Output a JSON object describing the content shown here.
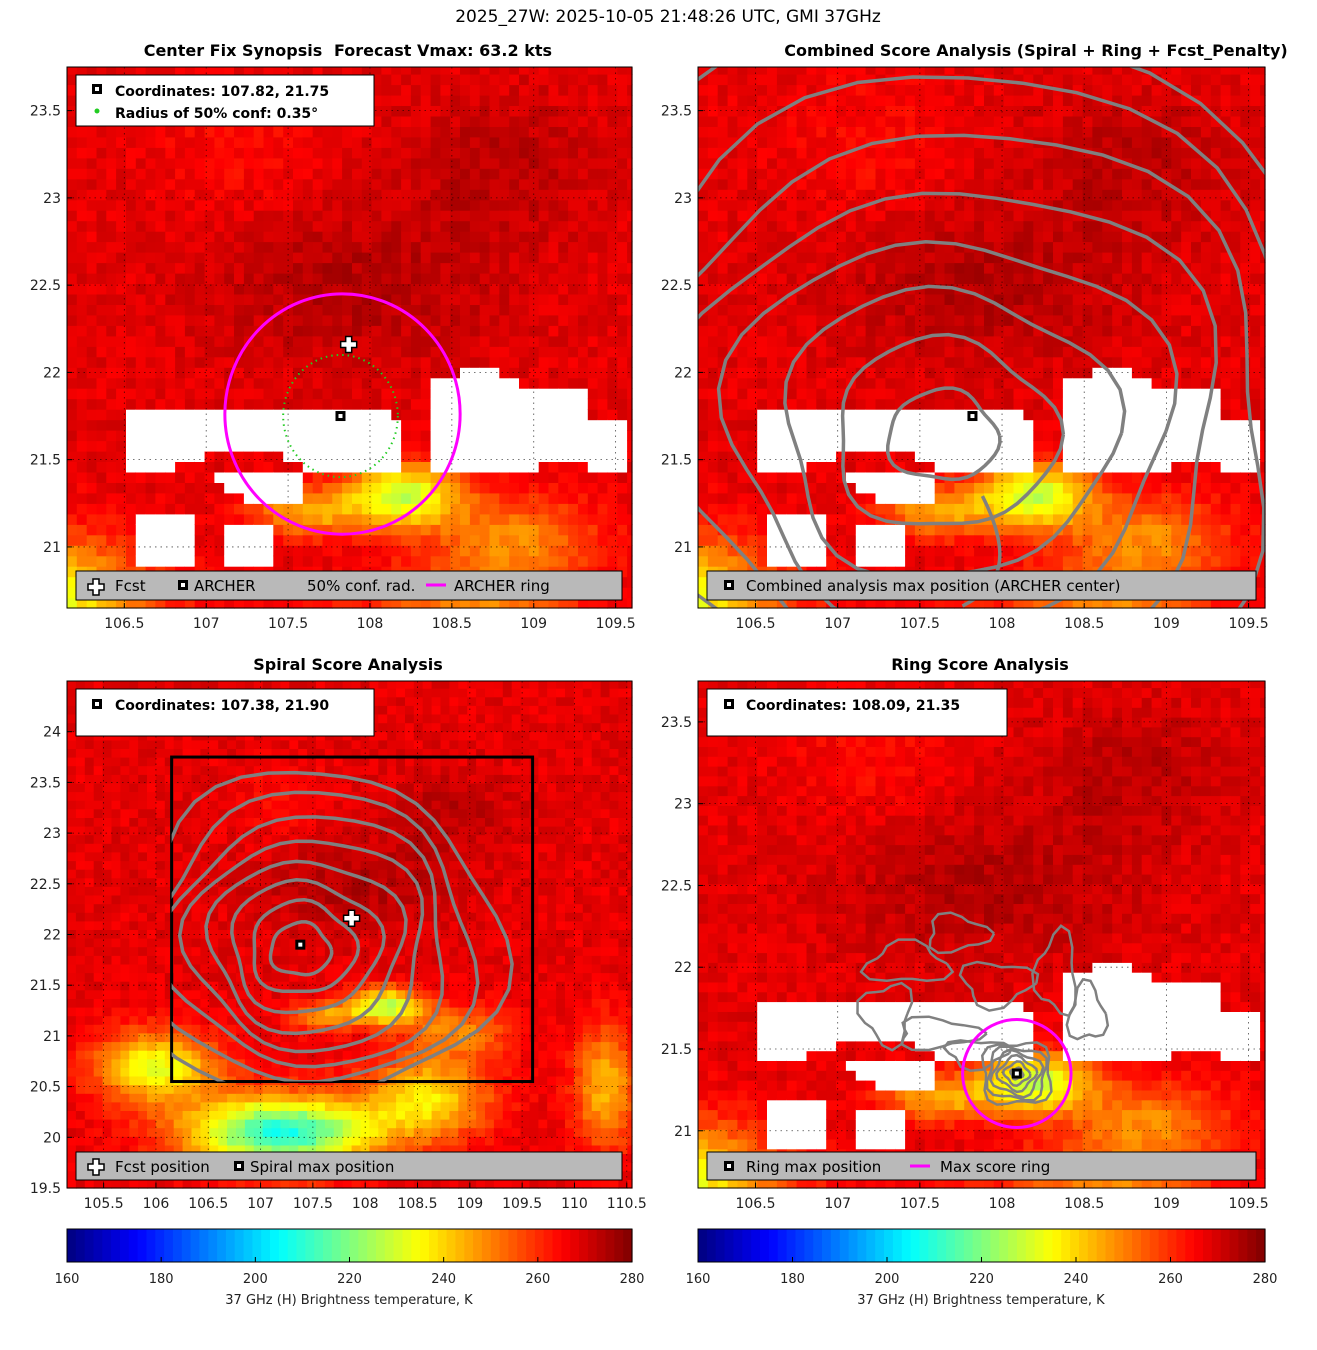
{
  "suptitle": "2025_27W: 2025-10-05 21:48:26 UTC, GMI 37GHz",
  "chart_data": [
    {
      "type": "heatmap",
      "id": "p1",
      "title_left": "Center Fix Synopsis",
      "title_right": "Forecast Vmax: 63.2 kts",
      "xlim": [
        106.15,
        109.6
      ],
      "ylim": [
        20.65,
        23.75
      ],
      "x_ticks": [
        "106.5",
        "107",
        "107.5",
        "108",
        "108.5",
        "109",
        "109.5"
      ],
      "y_ticks": [
        "21",
        "21.5",
        "22",
        "22.5",
        "23",
        "23.5"
      ],
      "info_lines": [
        "Coordinates: 107.82, 21.75",
        "Radius of 50% conf: 0.35°"
      ],
      "legend": [
        "Fcst",
        "ARCHER",
        "50% conf. rad.",
        "ARCHER ring"
      ],
      "fcst_position": [
        107.87,
        22.16
      ],
      "archer_center": [
        107.82,
        21.75
      ],
      "conf_radius_deg": 0.35,
      "archer_ring_radius_deg": 0.7
    },
    {
      "type": "heatmap",
      "id": "p2",
      "title": "Combined Score Analysis (Spiral + Ring + Fcst_Penalty)",
      "xlim": [
        106.15,
        109.6
      ],
      "ylim": [
        20.65,
        23.75
      ],
      "x_ticks": [
        "106.5",
        "107",
        "107.5",
        "108",
        "108.5",
        "109",
        "109.5"
      ],
      "y_ticks": [
        "21",
        "21.5",
        "22",
        "22.5",
        "23",
        "23.5"
      ],
      "legend": [
        "Combined analysis max position (ARCHER center)"
      ],
      "max_position": [
        107.82,
        21.75
      ]
    },
    {
      "type": "heatmap",
      "id": "p3",
      "title": "Spiral Score Analysis",
      "xlim": [
        105.15,
        110.55
      ],
      "ylim": [
        19.5,
        24.5
      ],
      "x_ticks": [
        "105.5",
        "106",
        "106.5",
        "107",
        "107.5",
        "108",
        "108.5",
        "109",
        "109.5",
        "110",
        "110.5"
      ],
      "y_ticks": [
        "19.5",
        "20",
        "20.5",
        "21",
        "21.5",
        "22",
        "22.5",
        "23",
        "23.5",
        "24"
      ],
      "info_lines": [
        "Coordinates: 107.38, 21.90"
      ],
      "legend": [
        "Fcst position",
        "Spiral max position"
      ],
      "fcst_position": [
        107.87,
        22.16
      ],
      "spiral_max": [
        107.38,
        21.9
      ],
      "search_box": [
        106.15,
        20.55,
        109.6,
        23.75
      ]
    },
    {
      "type": "heatmap",
      "id": "p4",
      "title": "Ring Score Analysis",
      "xlim": [
        106.15,
        109.6
      ],
      "ylim": [
        20.65,
        23.75
      ],
      "x_ticks": [
        "106.5",
        "107",
        "107.5",
        "108",
        "108.5",
        "109",
        "109.5"
      ],
      "y_ticks": [
        "21",
        "21.5",
        "22",
        "22.5",
        "23",
        "23.5"
      ],
      "info_lines": [
        "Coordinates: 108.09, 21.35"
      ],
      "legend": [
        "Ring max position",
        "Max score ring"
      ],
      "ring_max": [
        108.09,
        21.35
      ],
      "ring_radius_deg": 0.33
    }
  ],
  "colorbar": {
    "min": 160,
    "max": 280,
    "ticks": [
      "160",
      "180",
      "200",
      "220",
      "240",
      "260",
      "280"
    ],
    "label": "37 GHz (H) Brightness temperature, K"
  },
  "colors": {
    "fcst_penalty_ring": "#ff00ff",
    "conf_radius": "#22cc22",
    "contour": "#808080"
  }
}
